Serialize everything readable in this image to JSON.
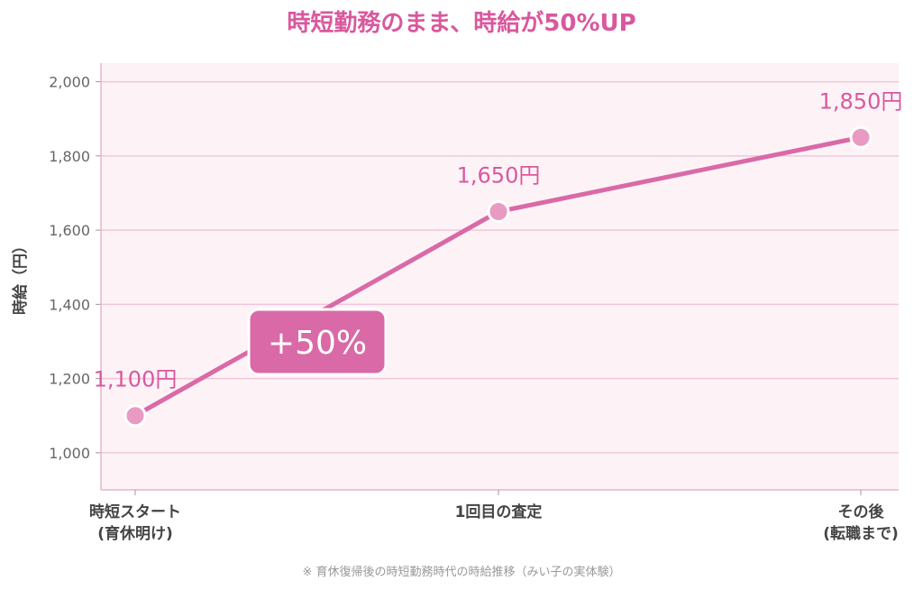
{
  "chart_data": {
    "type": "line",
    "title": "時短勤務のまま、時給が50%UP",
    "ylabel": "時給（円）",
    "xlabel": "",
    "ylim": [
      900,
      2050
    ],
    "yticks": [
      1000,
      1200,
      1400,
      1600,
      1800,
      2000
    ],
    "ytick_labels": [
      "1,000",
      "1,200",
      "1,400",
      "1,600",
      "1,800",
      "2,000"
    ],
    "categories": [
      [
        "時短スタート",
        "(育休明け)"
      ],
      [
        "1回目の査定"
      ],
      [
        "その後",
        "(転職まで)"
      ]
    ],
    "values": [
      1100,
      1650,
      1850
    ],
    "data_labels": [
      "1,100円",
      "1,650円",
      "1,850円"
    ],
    "annotation": "+50%",
    "footnote": "※ 育休復帰後の時短勤務時代の時給推移（みい子の実体験）",
    "grid": true,
    "colors": {
      "title": "#d9589e",
      "line": "#d96aa7",
      "marker": "#e89ac3",
      "label": "#d9589e",
      "plot_bg": "#fdf3f7",
      "grid": "#f1c6d9",
      "axis_text": "#666666",
      "footnote": "#999999",
      "badge": "#d96aa7"
    }
  }
}
